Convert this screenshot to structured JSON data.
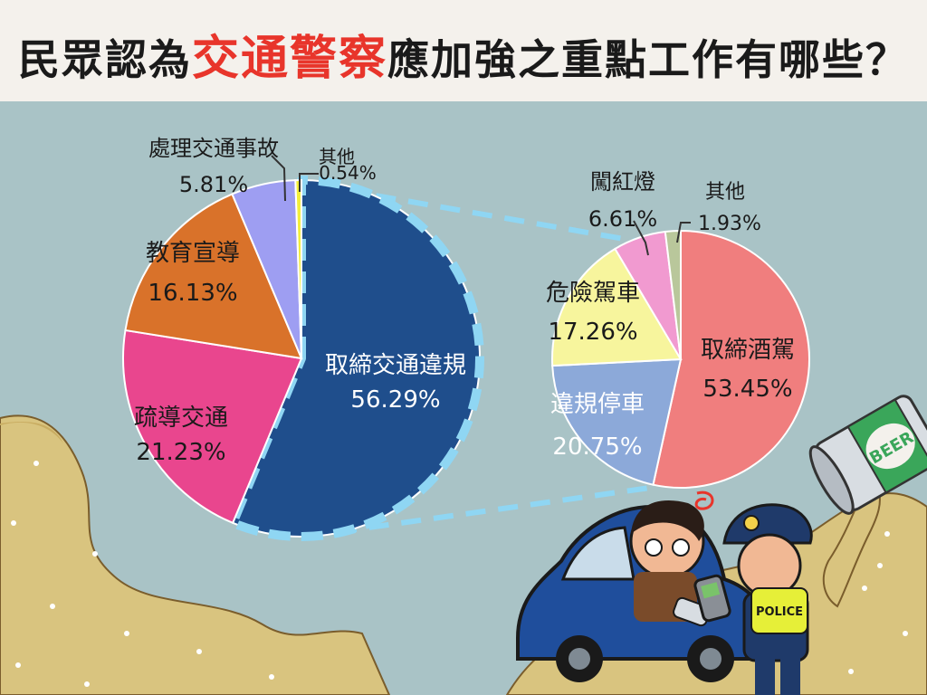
{
  "title": {
    "prefix": "民眾認為",
    "highlight": "交通警察",
    "suffix": "應加強之重點工作有哪些？"
  },
  "colors": {
    "background": "#a9c3c6",
    "title_highlight": "#e8352b",
    "dashed_outline": "#8fd6f3"
  },
  "chart_data": [
    {
      "type": "pie",
      "categories": [
        "取締交通違規",
        "疏導交通",
        "教育宣導",
        "處理交通事故",
        "其他"
      ],
      "values": [
        56.29,
        21.23,
        16.13,
        5.81,
        0.54
      ],
      "labels": [
        "56.29%",
        "21.23%",
        "16.13%",
        "5.81%",
        "0.54%"
      ],
      "colors": [
        "#1f4e8c",
        "#e9468e",
        "#d9722a",
        "#9e9ef2",
        "#f3ee3c"
      ]
    },
    {
      "type": "pie",
      "parent_category": "取締交通違規",
      "categories": [
        "取締酒駕",
        "違規停車",
        "危險駕車",
        "闖紅燈",
        "其他"
      ],
      "values": [
        53.45,
        20.75,
        17.26,
        6.61,
        1.93
      ],
      "labels": [
        "53.45%",
        "20.75%",
        "17.26%",
        "6.61%",
        "1.93%"
      ],
      "colors": [
        "#f07e7e",
        "#8ca9d9",
        "#f7f59d",
        "#f19ad0",
        "#b9c79b"
      ]
    }
  ],
  "illustration": {
    "beer_can_text": "BEER",
    "police_vest_text": "POLICE"
  }
}
